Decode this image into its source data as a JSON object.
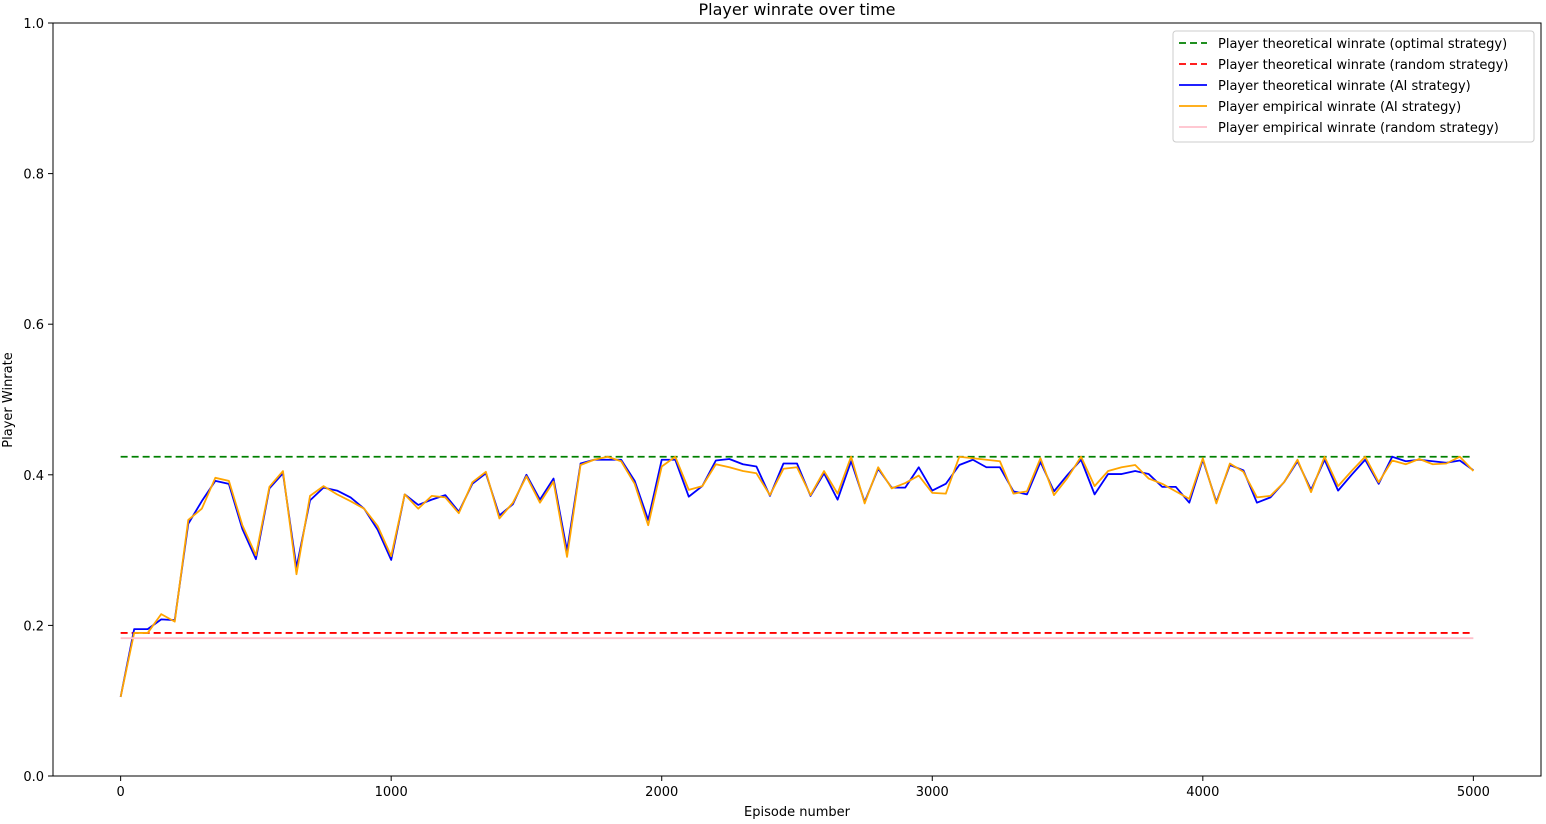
{
  "chart_data": {
    "type": "line",
    "title": "Player winrate over time",
    "xlabel": "Episode number",
    "ylabel": "Player Winrate",
    "xlim": [
      -250,
      5250
    ],
    "ylim": [
      0,
      1
    ],
    "xticks": [
      0,
      1000,
      2000,
      3000,
      4000,
      5000
    ],
    "yticks": [
      0.0,
      0.2,
      0.4,
      0.6,
      0.8,
      1.0
    ],
    "ytick_labels": [
      "0.0",
      "0.2",
      "0.4",
      "0.6",
      "0.8",
      "1.0"
    ],
    "grid": false,
    "legend_position": "top-right",
    "x": [
      0,
      50,
      100,
      150,
      200,
      250,
      300,
      350,
      400,
      450,
      500,
      550,
      600,
      650,
      700,
      750,
      800,
      850,
      900,
      950,
      1000,
      1050,
      1100,
      1150,
      1200,
      1250,
      1300,
      1350,
      1400,
      1450,
      1500,
      1550,
      1600,
      1650,
      1700,
      1750,
      1800,
      1850,
      1900,
      1950,
      2000,
      2050,
      2100,
      2150,
      2200,
      2250,
      2300,
      2350,
      2400,
      2450,
      2500,
      2550,
      2600,
      2650,
      2700,
      2750,
      2800,
      2850,
      2900,
      2950,
      3000,
      3050,
      3100,
      3150,
      3200,
      3250,
      3300,
      3350,
      3400,
      3450,
      3500,
      3550,
      3600,
      3650,
      3700,
      3750,
      3800,
      3850,
      3900,
      3950,
      4000,
      4050,
      4100,
      4150,
      4200,
      4250,
      4300,
      4350,
      4400,
      4450,
      4500,
      4550,
      4600,
      4650,
      4700,
      4750,
      4800,
      4850,
      4900,
      4950,
      5000
    ],
    "series": [
      {
        "name": "Player theoretical winrate (optimal strategy)",
        "color": "#008000",
        "style": "dashed",
        "constant": 0.424
      },
      {
        "name": "Player theoretical winrate (random strategy)",
        "color": "#ff0000",
        "style": "dashed",
        "constant": 0.19
      },
      {
        "name": "Player theoretical winrate (AI strategy)",
        "color": "#0000ff",
        "style": "solid",
        "values": [
          0.105,
          0.195,
          0.195,
          0.208,
          0.207,
          0.335,
          0.365,
          0.392,
          0.388,
          0.328,
          0.288,
          0.382,
          0.402,
          0.277,
          0.366,
          0.383,
          0.379,
          0.37,
          0.355,
          0.327,
          0.287,
          0.374,
          0.36,
          0.367,
          0.373,
          0.351,
          0.388,
          0.402,
          0.346,
          0.361,
          0.4,
          0.367,
          0.395,
          0.299,
          0.415,
          0.42,
          0.42,
          0.42,
          0.392,
          0.34,
          0.42,
          0.42,
          0.371,
          0.385,
          0.419,
          0.421,
          0.414,
          0.411,
          0.372,
          0.415,
          0.415,
          0.372,
          0.402,
          0.367,
          0.418,
          0.364,
          0.408,
          0.383,
          0.383,
          0.41,
          0.379,
          0.388,
          0.413,
          0.42,
          0.41,
          0.41,
          0.378,
          0.374,
          0.417,
          0.378,
          0.4,
          0.42,
          0.374,
          0.401,
          0.401,
          0.405,
          0.401,
          0.384,
          0.384,
          0.363,
          0.42,
          0.364,
          0.413,
          0.406,
          0.363,
          0.37,
          0.39,
          0.418,
          0.38,
          0.42,
          0.379,
          0.4,
          0.42,
          0.388,
          0.424,
          0.418,
          0.42,
          0.418,
          0.416,
          0.419,
          0.406
        ]
      },
      {
        "name": "Player empirical winrate (AI strategy)",
        "color": "#ffa500",
        "style": "solid",
        "values": [
          0.105,
          0.19,
          0.19,
          0.215,
          0.205,
          0.34,
          0.355,
          0.396,
          0.392,
          0.333,
          0.293,
          0.384,
          0.405,
          0.268,
          0.372,
          0.385,
          0.374,
          0.365,
          0.355,
          0.332,
          0.292,
          0.374,
          0.355,
          0.372,
          0.37,
          0.349,
          0.39,
          0.404,
          0.342,
          0.363,
          0.398,
          0.363,
          0.391,
          0.291,
          0.413,
          0.42,
          0.424,
          0.418,
          0.388,
          0.333,
          0.411,
          0.424,
          0.38,
          0.385,
          0.414,
          0.41,
          0.405,
          0.402,
          0.373,
          0.408,
          0.41,
          0.373,
          0.405,
          0.375,
          0.424,
          0.362,
          0.41,
          0.382,
          0.389,
          0.399,
          0.376,
          0.375,
          0.424,
          0.422,
          0.42,
          0.418,
          0.375,
          0.378,
          0.422,
          0.373,
          0.396,
          0.424,
          0.385,
          0.405,
          0.41,
          0.413,
          0.395,
          0.388,
          0.378,
          0.368,
          0.422,
          0.362,
          0.415,
          0.404,
          0.37,
          0.372,
          0.39,
          0.42,
          0.377,
          0.424,
          0.385,
          0.405,
          0.424,
          0.39,
          0.419,
          0.414,
          0.421,
          0.414,
          0.415,
          0.424,
          0.405
        ]
      },
      {
        "name": "Player empirical winrate (random strategy)",
        "color": "#ffc0cb",
        "style": "solid",
        "constant": 0.183
      }
    ]
  }
}
